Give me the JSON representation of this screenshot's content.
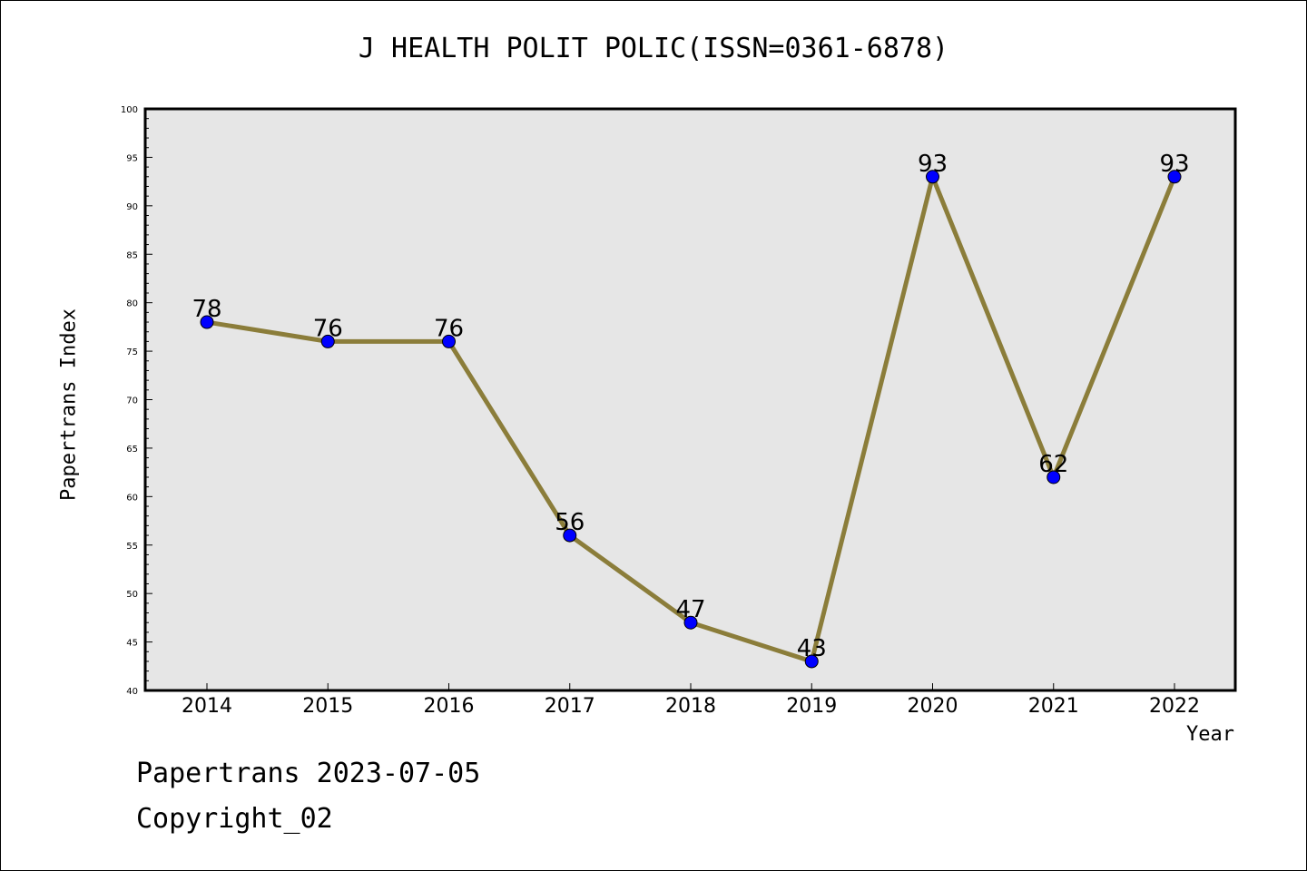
{
  "title": "J HEALTH POLIT POLIC(ISSN=0361-6878)",
  "footer": {
    "line1": "Papertrans 2023-07-05",
    "line2": "Copyright_02"
  },
  "colors": {
    "plot_bg": "#e6e6e6",
    "line": "#8b7d3a",
    "marker": "#0000ff"
  },
  "chart_data": {
    "type": "line",
    "title": "J HEALTH POLIT POLIC(ISSN=0361-6878)",
    "xlabel": "Year",
    "ylabel": "Papertrans Index",
    "ylim": [
      40,
      100
    ],
    "yticks": [
      40,
      45,
      50,
      55,
      60,
      65,
      70,
      75,
      80,
      85,
      90,
      95,
      100
    ],
    "grid": false,
    "categories": [
      "2014",
      "2015",
      "2016",
      "2017",
      "2018",
      "2019",
      "2020",
      "2021",
      "2022"
    ],
    "values": [
      78,
      76,
      76,
      56,
      47,
      43,
      93,
      62,
      93
    ],
    "data_labels": [
      "78",
      "76",
      "76",
      "56",
      "47",
      "43",
      "93",
      "62",
      "93"
    ]
  }
}
